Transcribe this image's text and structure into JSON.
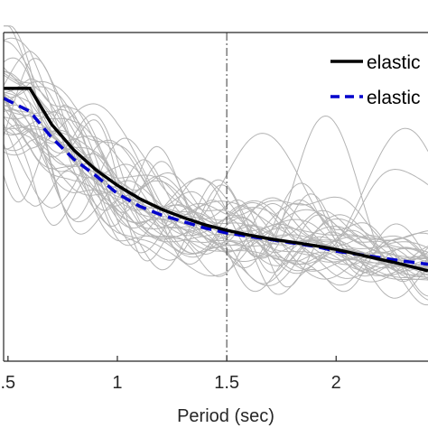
{
  "chart_data": {
    "type": "line",
    "title": "",
    "xlabel": "Period (sec)",
    "ylabel": "",
    "xlim": [
      0.48,
      2.42
    ],
    "ylim": [
      0,
      1
    ],
    "x_ticks": [
      {
        "value": 0.5,
        "label": ".5"
      },
      {
        "value": 1,
        "label": "1"
      },
      {
        "value": 1.5,
        "label": "1.5"
      },
      {
        "value": 2,
        "label": "2"
      }
    ],
    "grid": false,
    "legend_position": "top-right",
    "vertical_reference_line": {
      "x": 1.5,
      "style": "dash-dot"
    },
    "series": [
      {
        "name": "elastic",
        "color": "#000000",
        "style": "solid",
        "x": [
          0.48,
          0.6,
          0.7,
          0.8,
          0.9,
          1.0,
          1.1,
          1.2,
          1.3,
          1.4,
          1.5,
          1.6,
          1.7,
          1.8,
          1.9,
          2.0,
          2.1,
          2.2,
          2.3,
          2.42
        ],
        "y": [
          0.83,
          0.83,
          0.72,
          0.643,
          0.583,
          0.535,
          0.495,
          0.463,
          0.437,
          0.415,
          0.398,
          0.384,
          0.372,
          0.362,
          0.352,
          0.34,
          0.325,
          0.31,
          0.295,
          0.275
        ]
      },
      {
        "name": "elastic",
        "color": "#0000cc",
        "style": "dashed",
        "x": [
          0.48,
          0.6,
          0.7,
          0.8,
          0.9,
          1.0,
          1.1,
          1.2,
          1.3,
          1.4,
          1.5,
          1.6,
          1.7,
          1.8,
          1.9,
          2.0,
          2.1,
          2.2,
          2.3,
          2.42
        ],
        "y": [
          0.8,
          0.76,
          0.68,
          0.615,
          0.565,
          0.51,
          0.472,
          0.445,
          0.425,
          0.405,
          0.39,
          0.38,
          0.37,
          0.36,
          0.35,
          0.335,
          0.325,
          0.315,
          0.305,
          0.295
        ]
      }
    ],
    "background_records": {
      "count": 40,
      "color": "#b4b4b4"
    }
  }
}
